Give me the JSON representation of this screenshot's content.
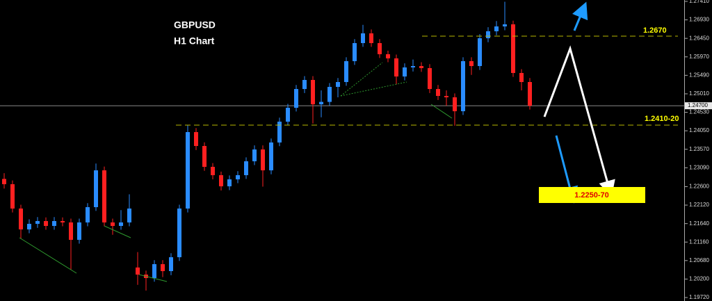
{
  "chart_data": {
    "type": "candlestick",
    "title": "GBPUSD",
    "subtitle": "H1 Chart",
    "annotations": {
      "upper_level": "1.2670",
      "lower_level": "1.2410-20",
      "target": "1.2250-70"
    },
    "last_price": {
      "value": 1.247,
      "label": "1.24700"
    },
    "up_color": "#2a8cff",
    "down_color": "#ff2020",
    "categories": [
      null,
      null,
      null,
      null,
      null,
      null,
      null,
      null,
      null,
      null,
      null,
      null,
      null,
      null,
      null,
      null,
      null,
      null,
      null,
      null,
      null,
      null,
      null,
      null,
      null,
      null,
      null,
      null,
      null,
      null,
      null,
      null,
      null,
      null,
      null,
      null,
      null,
      null,
      null,
      null,
      null,
      null,
      null,
      null,
      null,
      null,
      null,
      null,
      null,
      null,
      null,
      null,
      null,
      null,
      null,
      null,
      null,
      null,
      null,
      null,
      null,
      null,
      null,
      null
    ],
    "open": [
      1.228,
      1.22663,
      1.22031,
      1.21489,
      1.21634,
      1.21706,
      1.21579,
      1.21706,
      1.2167,
      1.21218,
      1.2167,
      1.22067,
      1.23023,
      1.2167,
      1.21579,
      1.2167,
      1.205,
      1.20316,
      1.20226,
      1.20587,
      1.20406,
      1.20767,
      1.22031,
      1.24016,
      1.23655,
      1.23114,
      1.22897,
      1.22608,
      1.22789,
      1.22897,
      1.23258,
      1.23565,
      1.23023,
      1.23746,
      1.24287,
      1.24648,
      1.25135,
      1.2537,
      1.24738,
      1.248,
      1.2519,
      1.25316,
      1.25858,
      1.26327,
      1.2658,
      1.26327,
      1.26038,
      1.2593,
      1.2546,
      1.25695,
      1.25731,
      1.25677,
      1.25135,
      1.24955,
      1.24919,
      1.24558,
      1.25858,
      1.25731,
      1.26453,
      1.26634,
      1.2676,
      1.26814,
      1.25551,
      1.25316
    ],
    "high": [
      1.2295,
      1.2276,
      1.2213,
      1.2175,
      1.2181,
      1.218,
      1.2181,
      1.218,
      1.2177,
      1.2177,
      1.2217,
      1.232,
      1.2312,
      1.2177,
      1.2199,
      1.224,
      1.209,
      1.2042,
      1.2069,
      1.2069,
      1.2087,
      1.2213,
      1.242,
      1.2412,
      1.2375,
      1.2321,
      1.2299,
      1.2289,
      1.23,
      1.2336,
      1.2367,
      1.2367,
      1.2385,
      1.2439,
      1.2475,
      1.2524,
      1.2547,
      1.2547,
      1.251,
      1.2529,
      1.2542,
      1.2596,
      1.2643,
      1.268,
      1.2668,
      1.2643,
      1.2613,
      1.2603,
      1.258,
      1.259,
      1.2583,
      1.2578,
      1.2524,
      1.251,
      1.2502,
      1.2596,
      1.2596,
      1.2656,
      1.2674,
      1.269,
      1.274,
      1.2691,
      1.2565,
      1.2542
    ],
    "low": [
      1.2255,
      1.2193,
      1.2125,
      1.2139,
      1.2153,
      1.2148,
      1.2148,
      1.2157,
      1.2045,
      1.2112,
      1.2157,
      1.2197,
      1.2157,
      1.2135,
      1.2148,
      1.2157,
      1.2005,
      1.199,
      1.2013,
      1.2025,
      1.203,
      1.2067,
      1.2193,
      1.2355,
      1.2301,
      1.2279,
      1.225,
      1.2251,
      1.2269,
      1.228,
      1.2316,
      1.226,
      1.2292,
      1.2365,
      1.2419,
      1.2455,
      1.2503,
      1.2424,
      1.244,
      1.247,
      1.2492,
      1.2522,
      1.2576,
      1.2623,
      1.2623,
      1.2594,
      1.2583,
      1.2525,
      1.2536,
      1.2559,
      1.2558,
      1.2503,
      1.2485,
      1.247,
      1.2418,
      1.2446,
      1.255,
      1.2563,
      1.2635,
      1.2653,
      1.2666,
      1.2545,
      1.251,
      1.246
    ],
    "close": [
      1.22663,
      1.22031,
      1.21489,
      1.21634,
      1.21706,
      1.21579,
      1.21706,
      1.2167,
      1.21218,
      1.2167,
      1.22067,
      1.23023,
      1.2167,
      1.21579,
      1.2167,
      1.22031,
      1.20316,
      1.20226,
      1.20587,
      1.20406,
      1.20767,
      1.22031,
      1.24016,
      1.23655,
      1.23114,
      1.22897,
      1.22608,
      1.22789,
      1.22897,
      1.23258,
      1.23565,
      1.23023,
      1.23746,
      1.24287,
      1.24648,
      1.25135,
      1.2537,
      1.24738,
      1.248,
      1.2519,
      1.25316,
      1.25858,
      1.26327,
      1.2658,
      1.26327,
      1.26038,
      1.2593,
      1.2546,
      1.25695,
      1.25731,
      1.25677,
      1.25135,
      1.24955,
      1.24919,
      1.24558,
      1.25858,
      1.25731,
      1.26453,
      1.26634,
      1.2676,
      1.26814,
      1.25551,
      1.25316,
      1.247
    ],
    "ylim": [
      1.1963,
      1.27446
    ],
    "yticks": [
      {
        "value": 1.2741,
        "label": "1.27410"
      },
      {
        "value": 1.2693,
        "label": "1.26930"
      },
      {
        "value": 1.2645,
        "label": "1.26450"
      },
      {
        "value": 1.2597,
        "label": "1.25970"
      },
      {
        "value": 1.2549,
        "label": "1.25490"
      },
      {
        "value": 1.2501,
        "label": "1.25010"
      },
      {
        "value": 1.2453,
        "label": "1.24530"
      },
      {
        "value": 1.2405,
        "label": "1.24050"
      },
      {
        "value": 1.2357,
        "label": "1.23570"
      },
      {
        "value": 1.2309,
        "label": "1.23090"
      },
      {
        "value": 1.226,
        "label": "1.22600"
      },
      {
        "value": 1.2212,
        "label": "1.22120"
      },
      {
        "value": 1.2164,
        "label": "1.21640"
      },
      {
        "value": 1.2116,
        "label": "1.21160"
      },
      {
        "value": 1.2068,
        "label": "1.20680"
      },
      {
        "value": 1.202,
        "label": "1.20200"
      },
      {
        "value": 1.1972,
        "label": "1.19720"
      }
    ]
  }
}
